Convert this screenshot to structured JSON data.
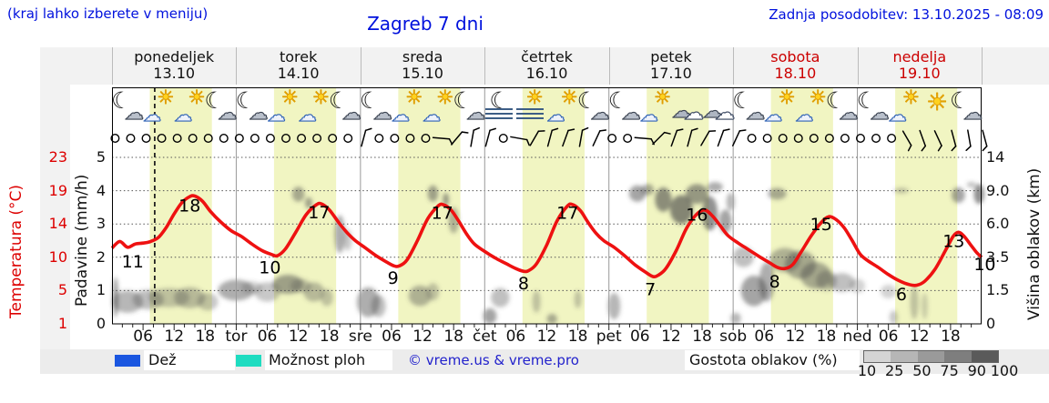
{
  "header": {
    "note": "(kraj lahko izberete v meniju)",
    "title": "Zagreb 7 dni",
    "updated": "Zadnja posodobitev: 13.10.2025 - 08:09"
  },
  "days": [
    {
      "name": "ponedeljek",
      "date": "13.10",
      "weekend": false
    },
    {
      "name": "torek",
      "date": "14.10",
      "weekend": false
    },
    {
      "name": "sreda",
      "date": "15.10",
      "weekend": false
    },
    {
      "name": "četrtek",
      "date": "16.10",
      "weekend": false
    },
    {
      "name": "petek",
      "date": "17.10",
      "weekend": false
    },
    {
      "name": "sobota",
      "date": "18.10",
      "weekend": true
    },
    {
      "name": "nedelja",
      "date": "19.10",
      "weekend": true
    }
  ],
  "axis_left_temp": {
    "label": "Temperatura (°C)",
    "ticks": [
      "23",
      "19",
      "14",
      "10",
      "5",
      "1"
    ]
  },
  "axis_left_precip": {
    "label": "Padavine (mm/h)",
    "ticks": [
      "5",
      "4",
      "3",
      "2",
      "1",
      "0"
    ]
  },
  "axis_right": {
    "label": "Višina oblakov (km)",
    "ticks": [
      "14",
      "9.0",
      "6.0",
      "3.5",
      "1.5",
      "0"
    ]
  },
  "bottom_axis": {
    "hour_labels": [
      "06",
      "12",
      "18"
    ],
    "day_short": [
      "tor",
      "sre",
      "čet",
      "pet",
      "sob",
      "ned"
    ]
  },
  "legend": {
    "rain": "Dež",
    "showers": "Možnost ploh",
    "copyright": "© vreme.us & vreme.pro",
    "cloud_density": "Gostota oblakov (%)",
    "density_ticks": [
      "10",
      "25",
      "50",
      "75",
      "90",
      "100"
    ],
    "rain_color": "#1a56e0",
    "showers_color": "#1edcc0",
    "density_colors": [
      "#d4d4d4",
      "#b6b6b6",
      "#9a9a9a",
      "#7e7e7e",
      "#5a5a5a"
    ]
  },
  "colors": {
    "accent_blue": "#0011dd",
    "red": "#dd0000",
    "curve": "#ee1111",
    "day_band": "#f1f5c2",
    "grid": "#555555",
    "separator": "#999999",
    "cloud": "#4a4a4a"
  },
  "icons": [
    "moon-cloud",
    "sun-cloud",
    "sun-cloud",
    "moon-cloud",
    "moon-cloud",
    "sun-cloud",
    "sun-cloud",
    "moon-cloud",
    "moon-cloud",
    "sun-cloud",
    "sun-cloud",
    "moon-cloud",
    "fog-moon",
    "fog-sun",
    "sun-cloud",
    "moon-cloud",
    "moon-cloud",
    "sun-cloud",
    "cloud",
    "cloud",
    "moon-cloud",
    "sun-cloud",
    "sun-cloud",
    "moon-cloud",
    "moon-cloud",
    "sun-cloud",
    "sun",
    "moon-cloud"
  ],
  "wind": [
    "c",
    "c",
    "c",
    "c",
    "c",
    "c",
    "c",
    "c",
    "c",
    "c",
    "c",
    "c",
    "c",
    "c",
    "c",
    "c",
    "b15",
    "c",
    "c",
    "c",
    "c",
    "b95",
    "b40",
    "b10",
    "b15",
    "c",
    "b100",
    "b30",
    "b15",
    "b20",
    "b10",
    "b25",
    "c",
    "c",
    "b95",
    "b45",
    "b20",
    "b15",
    "b30",
    "b20",
    "b25",
    "c",
    "c",
    "c",
    "c",
    "c",
    "c",
    "c",
    "c",
    "c",
    "c",
    "b150",
    "b160",
    "b155",
    "b165",
    "b170",
    "b165"
  ],
  "chart_data": {
    "type": "line",
    "title": "Zagreb 7 dni",
    "x_unit": "hours from Mon 13.10 00:00 (7 days, tick every 6 h)",
    "temp_axis_ticks": [
      1,
      5,
      10,
      14,
      19,
      23
    ],
    "precip_axis_ticks": [
      0,
      1,
      2,
      3,
      4,
      5
    ],
    "cloud_height_ticks_km": [
      0,
      1.5,
      3.5,
      6,
      9,
      14
    ],
    "now_line_hour": 8.25,
    "day_band_hours": [
      7.3,
      19.3
    ],
    "daily_min_max": [
      [
        11,
        18
      ],
      [
        10,
        17
      ],
      [
        9,
        17
      ],
      [
        8,
        17
      ],
      [
        7,
        16
      ],
      [
        8,
        15
      ],
      [
        6,
        13
      ]
    ],
    "end_temp": 10,
    "series": [
      {
        "name": "Temperatura",
        "color": "#ee1111",
        "points": [
          [
            0,
            11.1
          ],
          [
            1.5,
            11.9
          ],
          [
            3,
            11.2
          ],
          [
            4.5,
            11.6
          ],
          [
            6,
            11.7
          ],
          [
            7.5,
            11.9
          ],
          [
            9,
            12.4
          ],
          [
            10.5,
            13.6
          ],
          [
            12,
            15.5
          ],
          [
            13.5,
            17.2
          ],
          [
            15,
            18.1
          ],
          [
            16,
            18.2
          ],
          [
            17.5,
            17.4
          ],
          [
            19,
            15.9
          ],
          [
            21,
            14.3
          ],
          [
            23,
            13.2
          ],
          [
            25,
            12.5
          ],
          [
            27,
            11.6
          ],
          [
            29,
            10.8
          ],
          [
            31,
            10.3
          ],
          [
            32,
            10.2
          ],
          [
            33.5,
            11.0
          ],
          [
            35.5,
            13.0
          ],
          [
            37.5,
            15.4
          ],
          [
            39.5,
            16.9
          ],
          [
            40.5,
            17.0
          ],
          [
            42,
            16.1
          ],
          [
            44,
            14.0
          ],
          [
            45.5,
            12.9
          ],
          [
            47,
            12.0
          ],
          [
            49,
            11.1
          ],
          [
            51,
            10.2
          ],
          [
            53,
            9.3
          ],
          [
            54.5,
            8.7
          ],
          [
            55.5,
            8.7
          ],
          [
            57,
            9.6
          ],
          [
            59,
            12.0
          ],
          [
            61,
            14.8
          ],
          [
            63,
            16.7
          ],
          [
            64,
            16.9
          ],
          [
            65.5,
            16.1
          ],
          [
            67,
            14.4
          ],
          [
            68.5,
            12.8
          ],
          [
            70,
            11.6
          ],
          [
            72,
            10.7
          ],
          [
            74,
            9.9
          ],
          [
            76,
            9.1
          ],
          [
            78,
            8.3
          ],
          [
            79.5,
            7.9
          ],
          [
            80.5,
            8.0
          ],
          [
            82,
            9.0
          ],
          [
            84,
            11.5
          ],
          [
            86,
            14.5
          ],
          [
            88,
            16.7
          ],
          [
            89,
            16.9
          ],
          [
            90.5,
            16.0
          ],
          [
            92,
            14.2
          ],
          [
            93.5,
            12.9
          ],
          [
            95,
            12.0
          ],
          [
            97,
            11.2
          ],
          [
            99,
            10.2
          ],
          [
            101,
            8.9
          ],
          [
            103,
            7.8
          ],
          [
            104.5,
            7.1
          ],
          [
            105.5,
            7.3
          ],
          [
            107,
            8.3
          ],
          [
            109,
            10.8
          ],
          [
            111,
            13.5
          ],
          [
            113,
            15.5
          ],
          [
            114.5,
            16.1
          ],
          [
            116,
            15.2
          ],
          [
            117.5,
            13.8
          ],
          [
            119,
            12.6
          ],
          [
            121,
            11.7
          ],
          [
            123,
            10.9
          ],
          [
            125,
            10.1
          ],
          [
            127,
            9.2
          ],
          [
            128.5,
            8.5
          ],
          [
            130,
            8.3
          ],
          [
            131.5,
            8.9
          ],
          [
            133,
            10.5
          ],
          [
            135,
            12.5
          ],
          [
            137,
            14.2
          ],
          [
            138.5,
            15.1
          ],
          [
            140,
            14.6
          ],
          [
            141.5,
            13.5
          ],
          [
            143,
            12.0
          ],
          [
            144.5,
            10.4
          ],
          [
            146,
            9.5
          ],
          [
            148,
            8.5
          ],
          [
            150,
            7.4
          ],
          [
            152,
            6.5
          ],
          [
            154,
            5.9
          ],
          [
            155.5,
            5.8
          ],
          [
            157,
            6.4
          ],
          [
            159,
            8.2
          ],
          [
            161,
            10.8
          ],
          [
            162.5,
            12.5
          ],
          [
            163.5,
            13.0
          ],
          [
            164.5,
            12.6
          ],
          [
            166,
            11.4
          ],
          [
            167,
            10.6
          ],
          [
            168,
            10.0
          ]
        ]
      }
    ],
    "point_labels": [
      {
        "text": "11",
        "hour": 4.0,
        "temp": 9.3
      },
      {
        "text": "18",
        "hour": 15.0,
        "temp": 16.7
      },
      {
        "text": "10",
        "hour": 30.5,
        "temp": 8.4
      },
      {
        "text": "17",
        "hour": 40.0,
        "temp": 15.7
      },
      {
        "text": "9",
        "hour": 54.3,
        "temp": 6.8
      },
      {
        "text": "17",
        "hour": 63.8,
        "temp": 15.6
      },
      {
        "text": "8",
        "hour": 79.5,
        "temp": 6.0
      },
      {
        "text": "17",
        "hour": 88.0,
        "temp": 15.6
      },
      {
        "text": "7",
        "hour": 104.0,
        "temp": 5.1
      },
      {
        "text": "16",
        "hour": 113.0,
        "temp": 15.3
      },
      {
        "text": "8",
        "hour": 128.0,
        "temp": 6.3
      },
      {
        "text": "15",
        "hour": 137.0,
        "temp": 13.9
      },
      {
        "text": "6",
        "hour": 152.5,
        "temp": 4.5
      },
      {
        "text": "13",
        "hour": 162.6,
        "temp": 11.9
      },
      {
        "text": "10",
        "hour": 168.6,
        "temp": 8.9
      }
    ],
    "clouds": [
      [
        0.7,
        1.3,
        0.5,
        1.0,
        0.55
      ],
      [
        3,
        1.0,
        3,
        0.5,
        0.4
      ],
      [
        7,
        1.1,
        3,
        0.45,
        0.35
      ],
      [
        11,
        1.2,
        4,
        0.45,
        0.3
      ],
      [
        15,
        1.2,
        3,
        0.5,
        0.35
      ],
      [
        18.5,
        1.0,
        2,
        0.4,
        0.3
      ],
      [
        24,
        1.6,
        3.5,
        0.55,
        0.45
      ],
      [
        27,
        1.7,
        2,
        0.35,
        0.25
      ],
      [
        30,
        1.5,
        2.5,
        0.5,
        0.3
      ],
      [
        34,
        1.9,
        3,
        0.55,
        0.5
      ],
      [
        36.5,
        1.8,
        2,
        0.4,
        0.3
      ],
      [
        39,
        1.5,
        2,
        0.5,
        0.35
      ],
      [
        41.5,
        1.2,
        1.2,
        0.4,
        0.3
      ],
      [
        36,
        8.8,
        1.2,
        0.8,
        0.45
      ],
      [
        38,
        7.9,
        0.7,
        0.5,
        0.5
      ],
      [
        44,
        5.3,
        1.0,
        1.5,
        0.45
      ],
      [
        45.5,
        4.8,
        0.8,
        0.8,
        0.3
      ],
      [
        49.5,
        1.0,
        2.2,
        0.7,
        0.45
      ],
      [
        51.5,
        0.8,
        1.4,
        0.5,
        0.35
      ],
      [
        59.5,
        1.3,
        2.2,
        0.5,
        0.4
      ],
      [
        62,
        1.5,
        1.2,
        0.45,
        0.3
      ],
      [
        62,
        8.9,
        1.0,
        0.9,
        0.5
      ],
      [
        64.5,
        8.2,
        0.6,
        0.6,
        0.55
      ],
      [
        66,
        6.4,
        1.0,
        1.1,
        0.4
      ],
      [
        73,
        0.3,
        1.3,
        0.4,
        0.5
      ],
      [
        75,
        1.2,
        1.8,
        0.45,
        0.35
      ],
      [
        82,
        1.0,
        0.8,
        0.5,
        0.3
      ],
      [
        85,
        0.15,
        1,
        0.3,
        0.45
      ],
      [
        90,
        1.1,
        0.7,
        0.4,
        0.3
      ],
      [
        97,
        0.8,
        1.2,
        0.6,
        0.4
      ],
      [
        101.5,
        8.9,
        1.6,
        0.9,
        0.5
      ],
      [
        103.5,
        9.3,
        1.2,
        0.7,
        0.45
      ],
      [
        106.5,
        8.3,
        1.6,
        1.2,
        0.6
      ],
      [
        110,
        7.3,
        2.2,
        1.3,
        0.65
      ],
      [
        113,
        8.9,
        2.2,
        1.1,
        0.55
      ],
      [
        115.5,
        7.0,
        1.5,
        1.5,
        0.6
      ],
      [
        116.5,
        9.6,
        1.5,
        0.7,
        0.45
      ],
      [
        118.5,
        6.3,
        1.2,
        1.0,
        0.5
      ],
      [
        119.5,
        8.0,
        0.8,
        0.8,
        0.4
      ],
      [
        120.5,
        0.2,
        1,
        0.3,
        0.4
      ],
      [
        122,
        3.6,
        2,
        0.7,
        0.35
      ],
      [
        124,
        1.6,
        2.5,
        0.8,
        0.5
      ],
      [
        126.5,
        2.1,
        1.5,
        1.1,
        0.45
      ],
      [
        130,
        3.4,
        3,
        0.8,
        0.4
      ],
      [
        133,
        3.1,
        3,
        0.9,
        0.45
      ],
      [
        136,
        2.4,
        3,
        0.8,
        0.45
      ],
      [
        138,
        2.1,
        2,
        0.6,
        0.35
      ],
      [
        141,
        2.0,
        2.5,
        0.55,
        0.35
      ],
      [
        144,
        1.8,
        1.5,
        0.4,
        0.25
      ],
      [
        128.5,
        8.8,
        1.8,
        0.6,
        0.45
      ],
      [
        150,
        1.5,
        1.5,
        0.35,
        0.25
      ],
      [
        151,
        0.3,
        0.8,
        0.3,
        0.3
      ],
      [
        155,
        1.0,
        0.8,
        0.8,
        0.3
      ],
      [
        157,
        0.8,
        0.6,
        0.6,
        0.25
      ],
      [
        152.5,
        9.1,
        1.4,
        0.35,
        0.3
      ],
      [
        163.5,
        8.7,
        1.3,
        0.8,
        0.5
      ],
      [
        166,
        9.9,
        0.9,
        0.35,
        0.35
      ],
      [
        167.5,
        8.9,
        1.0,
        1.1,
        0.6
      ]
    ]
  }
}
